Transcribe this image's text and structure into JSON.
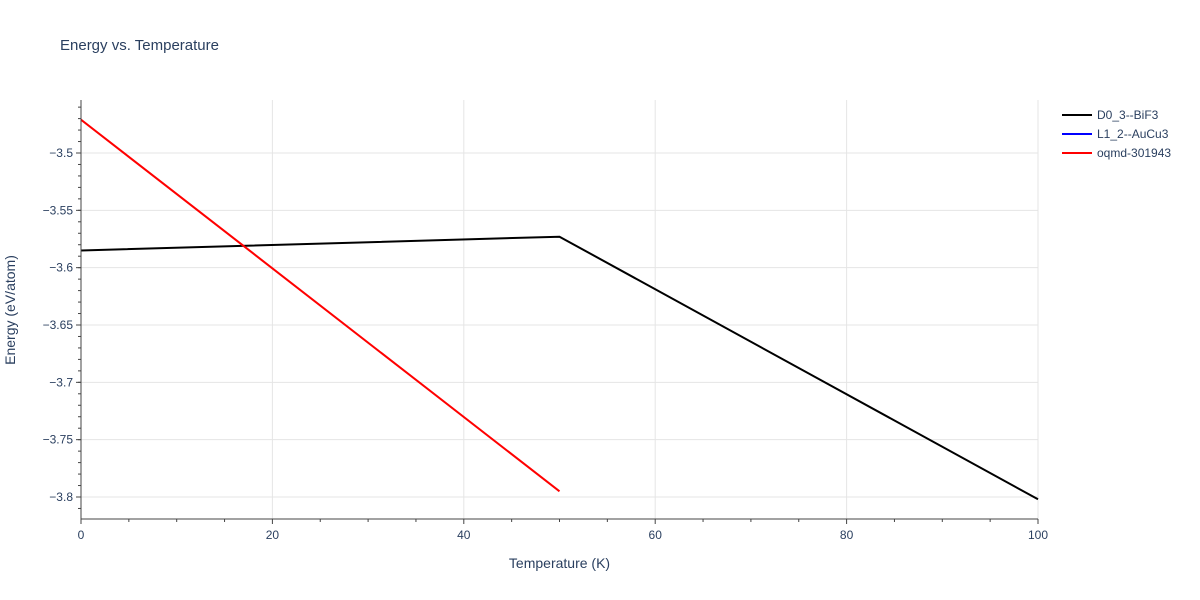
{
  "chart_data": {
    "type": "line",
    "title": "Energy vs. Temperature",
    "xlabel": "Temperature (K)",
    "ylabel": "Energy (eV/atom)",
    "xlim": [
      0,
      100
    ],
    "ylim": [
      -3.82,
      -3.46
    ],
    "x_ticks": [
      0,
      20,
      40,
      60,
      80,
      100
    ],
    "x_tick_labels": [
      "0",
      "20",
      "40",
      "60",
      "80",
      "100"
    ],
    "y_ticks": [
      -3.5,
      -3.55,
      -3.6,
      -3.65,
      -3.7,
      -3.75,
      -3.8
    ],
    "y_tick_labels": [
      "−3.5",
      "−3.55",
      "−3.6",
      "−3.65",
      "−3.7",
      "−3.75",
      "−3.8"
    ],
    "grid": true,
    "legend_position": "top-right",
    "series": [
      {
        "name": "D0_3--BiF3",
        "color": "#000000",
        "x": [
          0,
          50,
          100
        ],
        "y": [
          -3.585,
          -3.573,
          -3.802
        ]
      },
      {
        "name": "L1_2--AuCu3",
        "color": "#0000ff",
        "x": [],
        "y": []
      },
      {
        "name": "oqmd-301943",
        "color": "#ff0000",
        "x": [
          0,
          50
        ],
        "y": [
          -3.471,
          -3.795
        ]
      }
    ]
  }
}
